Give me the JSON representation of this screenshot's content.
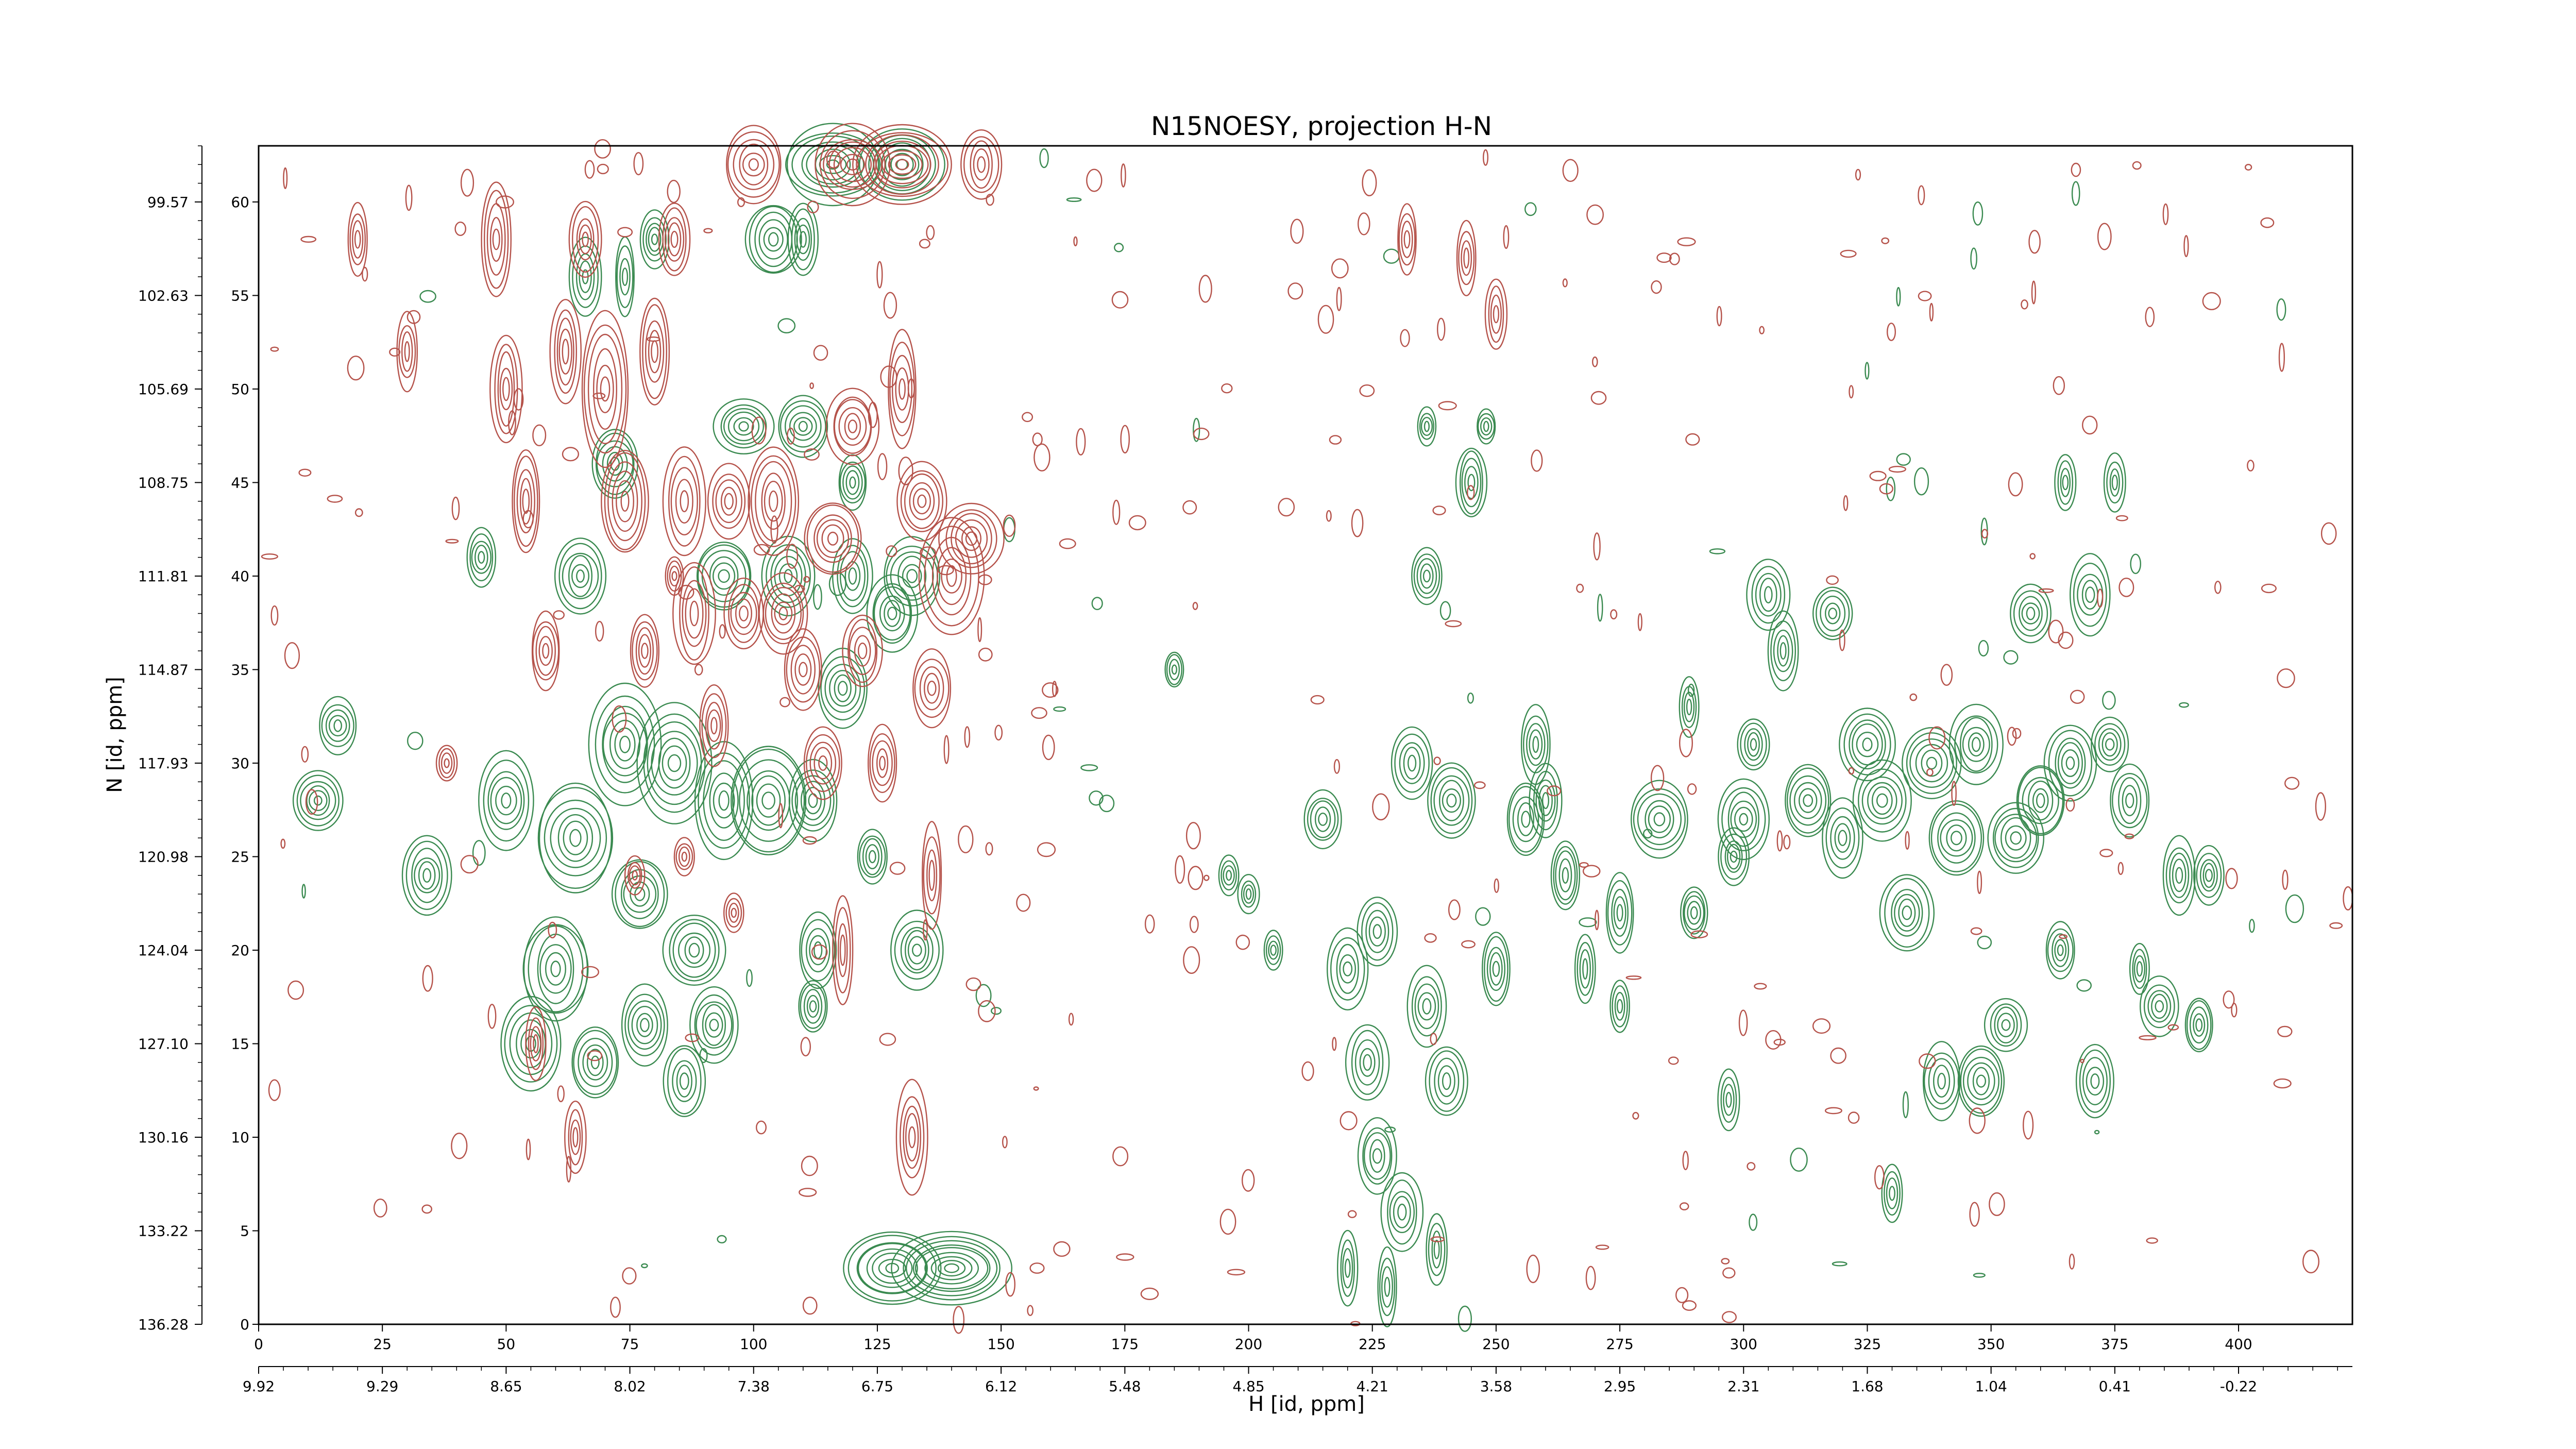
{
  "chart_data": {
    "type": "contour",
    "title": "N15NOESY, projection H-N",
    "xlabel": "H [id, ppm]",
    "ylabel": "N [id, ppm]",
    "x_index_range": [
      0,
      423
    ],
    "y_index_range": [
      0,
      63
    ],
    "x_index_ticks": [
      0,
      25,
      50,
      75,
      100,
      125,
      150,
      175,
      200,
      225,
      250,
      275,
      300,
      325,
      350,
      375,
      400
    ],
    "x_ppm_ticks": [
      "9.92",
      "9.29",
      "8.65",
      "8.02",
      "7.38",
      "6.75",
      "6.12",
      "5.48",
      "4.85",
      "4.21",
      "3.58",
      "2.95",
      "2.31",
      "1.68",
      "1.04",
      "0.41",
      "-0.22"
    ],
    "y_index_ticks": [
      0,
      5,
      10,
      15,
      20,
      25,
      30,
      35,
      40,
      45,
      50,
      55,
      60
    ],
    "y_ppm_ticks": [
      "136.28",
      "133.22",
      "130.16",
      "127.10",
      "124.04",
      "120.98",
      "117.93",
      "114.87",
      "111.81",
      "108.75",
      "105.69",
      "102.63",
      "99.57"
    ],
    "series": [
      {
        "color": "#3a8a50",
        "peaks": [
          [
            12,
            28,
            5,
            1.5
          ],
          [
            16,
            32,
            4,
            1.5
          ],
          [
            34,
            24,
            5,
            2
          ],
          [
            45,
            41,
            3,
            1.5
          ],
          [
            50,
            28,
            6,
            2.5
          ],
          [
            55,
            15,
            6,
            2.5
          ],
          [
            60,
            19,
            7,
            3
          ],
          [
            64,
            26,
            8,
            3
          ],
          [
            65,
            40,
            5,
            2
          ],
          [
            68,
            14,
            5,
            2
          ],
          [
            72,
            46,
            5,
            2
          ],
          [
            74,
            31,
            7,
            3
          ],
          [
            77,
            23,
            6,
            2
          ],
          [
            78,
            16,
            5,
            2
          ],
          [
            80,
            58,
            3,
            1.5
          ],
          [
            84,
            30,
            8,
            3
          ],
          [
            86,
            13,
            4,
            2
          ],
          [
            88,
            20,
            6,
            2
          ],
          [
            92,
            16,
            5,
            2
          ],
          [
            94,
            28,
            6,
            3
          ],
          [
            94,
            40,
            6,
            2
          ],
          [
            98,
            48,
            6,
            1.5
          ],
          [
            103,
            28,
            8,
            3
          ],
          [
            104,
            58,
            6,
            2
          ],
          [
            107,
            40,
            5,
            2
          ],
          [
            110,
            48,
            5,
            1.5
          ],
          [
            112,
            28,
            5,
            2
          ],
          [
            113,
            20,
            4,
            2
          ],
          [
            112,
            17,
            3,
            1.5
          ],
          [
            118,
            34,
            5,
            2
          ],
          [
            120,
            40,
            4,
            2
          ],
          [
            120,
            45,
            3,
            1.5
          ],
          [
            124,
            25,
            3,
            1.5
          ],
          [
            128,
            38,
            5,
            2
          ],
          [
            132,
            40,
            6,
            2
          ],
          [
            133,
            20,
            5,
            2
          ],
          [
            128,
            3,
            10,
            2
          ],
          [
            140,
            3,
            12,
            2
          ],
          [
            116,
            62,
            10,
            2
          ],
          [
            130,
            62,
            8,
            2
          ],
          [
            66,
            56,
            3,
            2
          ],
          [
            74,
            56,
            2,
            2
          ],
          [
            110,
            58,
            3,
            2
          ],
          [
            185,
            35,
            2,
            1
          ],
          [
            196,
            24,
            2,
            1
          ],
          [
            200,
            23,
            2,
            1
          ],
          [
            205,
            20,
            2,
            1
          ],
          [
            215,
            27,
            4,
            1.5
          ],
          [
            220,
            19,
            4,
            2
          ],
          [
            224,
            14,
            4,
            2
          ],
          [
            226,
            21,
            4,
            2
          ],
          [
            226,
            9,
            4,
            2
          ],
          [
            231,
            6,
            4,
            2
          ],
          [
            236,
            17,
            4,
            2
          ],
          [
            240,
            13,
            4,
            2
          ],
          [
            241,
            28,
            5,
            2
          ],
          [
            245,
            45,
            3,
            2
          ],
          [
            236,
            40,
            3,
            1.5
          ],
          [
            250,
            19,
            3,
            2
          ],
          [
            256,
            27,
            4,
            2
          ],
          [
            258,
            31,
            3,
            2
          ],
          [
            233,
            30,
            4,
            2
          ],
          [
            220,
            3,
            2,
            2
          ],
          [
            228,
            2,
            2,
            2
          ],
          [
            238,
            4,
            2,
            2
          ],
          [
            236,
            48,
            2,
            1
          ],
          [
            248,
            48,
            2,
            1
          ],
          [
            264,
            24,
            3,
            2
          ],
          [
            268,
            19,
            2,
            2
          ],
          [
            275,
            22,
            3,
            2
          ],
          [
            283,
            27,
            6,
            2
          ],
          [
            290,
            22,
            3,
            1.5
          ],
          [
            300,
            27,
            5,
            2
          ],
          [
            297,
            12,
            2,
            1.5
          ],
          [
            305,
            39,
            4,
            2
          ],
          [
            308,
            36,
            3,
            2
          ],
          [
            313,
            28,
            5,
            2
          ],
          [
            318,
            38,
            4,
            1.5
          ],
          [
            320,
            26,
            4,
            2
          ],
          [
            325,
            31,
            6,
            2
          ],
          [
            328,
            28,
            6,
            2
          ],
          [
            333,
            22,
            5,
            2
          ],
          [
            338,
            30,
            6,
            2
          ],
          [
            340,
            13,
            4,
            2
          ],
          [
            343,
            26,
            6,
            2
          ],
          [
            348,
            13,
            5,
            2
          ],
          [
            347,
            31,
            5,
            2
          ],
          [
            353,
            16,
            4,
            1.5
          ],
          [
            355,
            26,
            6,
            2
          ],
          [
            358,
            38,
            4,
            1.5
          ],
          [
            360,
            28,
            5,
            2
          ],
          [
            364,
            20,
            3,
            1.5
          ],
          [
            366,
            30,
            5,
            2
          ],
          [
            370,
            39,
            4,
            2
          ],
          [
            371,
            13,
            4,
            2
          ],
          [
            374,
            31,
            4,
            1.5
          ],
          [
            375,
            45,
            2,
            1.5
          ],
          [
            378,
            28,
            4,
            2
          ],
          [
            380,
            19,
            2,
            1.5
          ],
          [
            384,
            17,
            4,
            1.5
          ],
          [
            388,
            24,
            3,
            2
          ],
          [
            392,
            16,
            3,
            1.5
          ],
          [
            394,
            24,
            3,
            1.5
          ],
          [
            365,
            45,
            2,
            1.5
          ],
          [
            260,
            28,
            3,
            2
          ],
          [
            298,
            25,
            3,
            1.5
          ],
          [
            302,
            31,
            3,
            1.5
          ],
          [
            289,
            33,
            2,
            1.5
          ],
          [
            330,
            7,
            2,
            1.5
          ],
          [
            275,
            17,
            2,
            1.5
          ]
        ]
      },
      {
        "color": "#b5524a",
        "peaks": [
          [
            48,
            58,
            3,
            3
          ],
          [
            50,
            50,
            3,
            3
          ],
          [
            54,
            44,
            3,
            3
          ],
          [
            58,
            36,
            3,
            2
          ],
          [
            62,
            52,
            3,
            3
          ],
          [
            66,
            58,
            3,
            2
          ],
          [
            70,
            50,
            5,
            4
          ],
          [
            74,
            44,
            5,
            3
          ],
          [
            78,
            36,
            3,
            2
          ],
          [
            80,
            52,
            3,
            3
          ],
          [
            84,
            58,
            3,
            2
          ],
          [
            86,
            44,
            4,
            3
          ],
          [
            88,
            38,
            4,
            3
          ],
          [
            92,
            32,
            3,
            2
          ],
          [
            95,
            44,
            4,
            2
          ],
          [
            98,
            38,
            4,
            2
          ],
          [
            100,
            62,
            6,
            2
          ],
          [
            104,
            44,
            5,
            3
          ],
          [
            106,
            38,
            5,
            2
          ],
          [
            110,
            35,
            4,
            2
          ],
          [
            114,
            30,
            4,
            2
          ],
          [
            116,
            42,
            6,
            2
          ],
          [
            120,
            48,
            5,
            2
          ],
          [
            122,
            36,
            4,
            2
          ],
          [
            126,
            30,
            3,
            2
          ],
          [
            130,
            50,
            3,
            3
          ],
          [
            134,
            44,
            5,
            2
          ],
          [
            136,
            34,
            4,
            2
          ],
          [
            140,
            40,
            6,
            3
          ],
          [
            144,
            42,
            6,
            2
          ],
          [
            130,
            62,
            10,
            2
          ],
          [
            120,
            62,
            8,
            2
          ],
          [
            146,
            62,
            4,
            2
          ],
          [
            136,
            24,
            2,
            3
          ],
          [
            118,
            20,
            2,
            3
          ],
          [
            132,
            10,
            3,
            3
          ],
          [
            76,
            24,
            2,
            1
          ],
          [
            86,
            25,
            2,
            1
          ],
          [
            96,
            22,
            2,
            1
          ],
          [
            84,
            40,
            2,
            1
          ],
          [
            64,
            10,
            2,
            2
          ],
          [
            56,
            15,
            2,
            2
          ],
          [
            38,
            30,
            2,
            1
          ],
          [
            30,
            52,
            2,
            2
          ],
          [
            20,
            58,
            2,
            2
          ],
          [
            232,
            58,
            2,
            2
          ],
          [
            244,
            57,
            2,
            2
          ],
          [
            250,
            54,
            2,
            2
          ]
        ]
      }
    ],
    "noise_seed": 17
  }
}
